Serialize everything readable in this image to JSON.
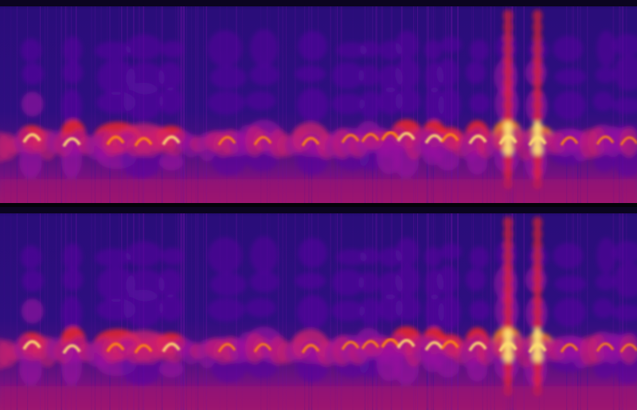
{
  "spectrogram": {
    "channels": [
      "top",
      "bottom"
    ],
    "colormap": [
      "#180060",
      "#2a0a80",
      "#5a0aa0",
      "#9a10a0",
      "#d02070",
      "#ff2a20",
      "#ff8a10",
      "#ffe070",
      "#ffffff"
    ],
    "background_color": "#2a0d7a",
    "separator_color": "#05020a"
  }
}
